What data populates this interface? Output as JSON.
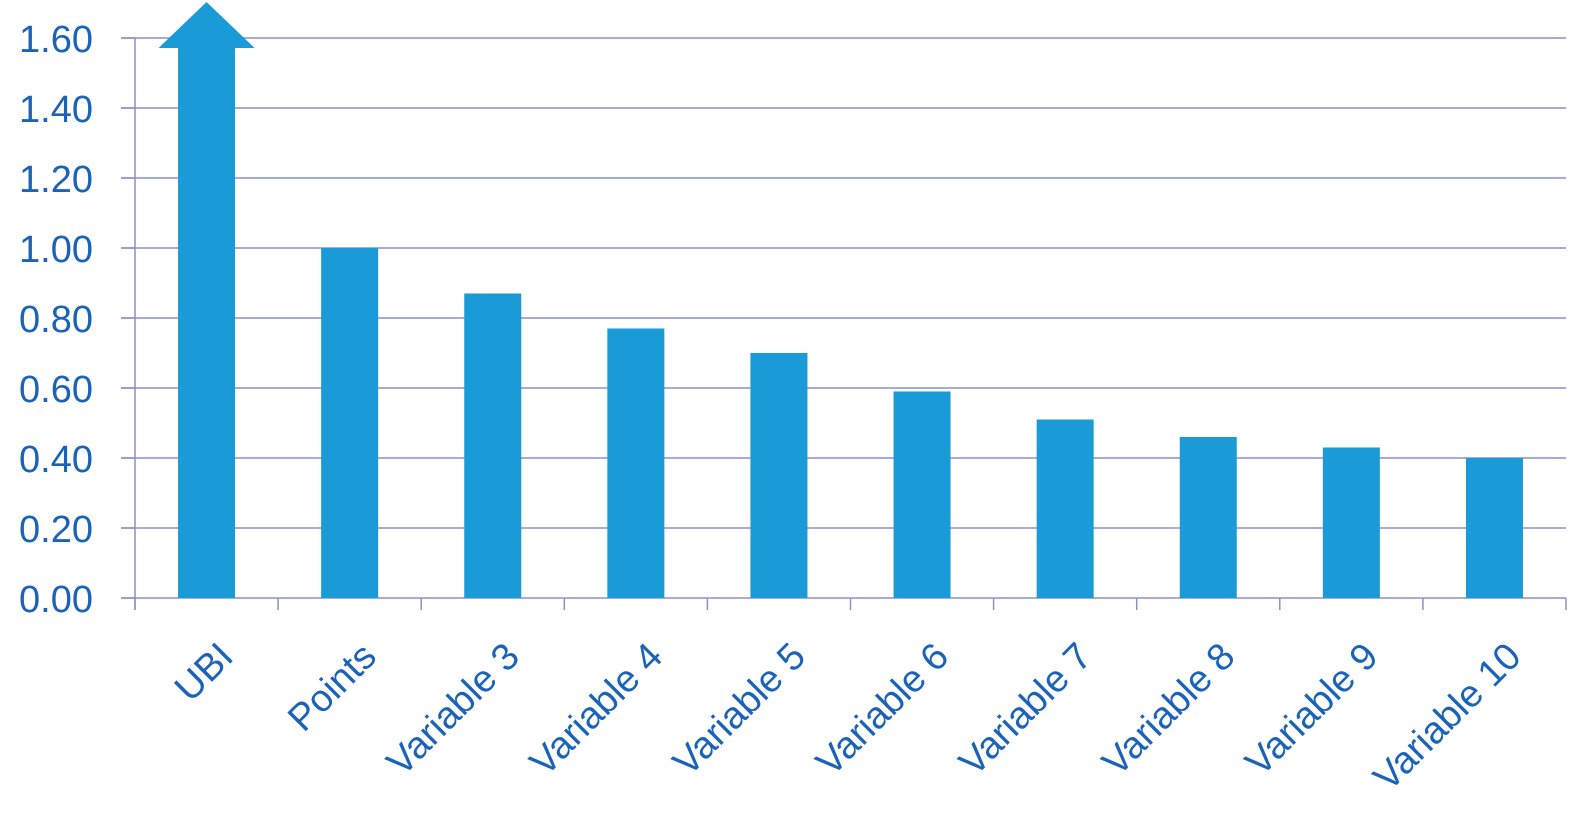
{
  "chart_data": {
    "type": "bar",
    "categories": [
      "UBI",
      "Points",
      "Variable 3",
      "Variable 4",
      "Variable 5",
      "Variable 6",
      "Variable 7",
      "Variable 8",
      "Variable 9",
      "Variable 10"
    ],
    "values": [
      1.6,
      1.0,
      0.87,
      0.77,
      0.7,
      0.59,
      0.51,
      0.46,
      0.43,
      0.4
    ],
    "off_scale_categories": [
      "UBI"
    ],
    "ylim": [
      0,
      1.6
    ],
    "yticks": [
      "0.00",
      "0.20",
      "0.40",
      "0.60",
      "0.80",
      "1.00",
      "1.20",
      "1.40",
      "1.60"
    ],
    "grid": true,
    "title": "",
    "xlabel": "",
    "ylabel": "",
    "colors": {
      "bar": "#1a9ad6",
      "grid": "#8c8fd0",
      "text": "#1a63b8"
    }
  }
}
